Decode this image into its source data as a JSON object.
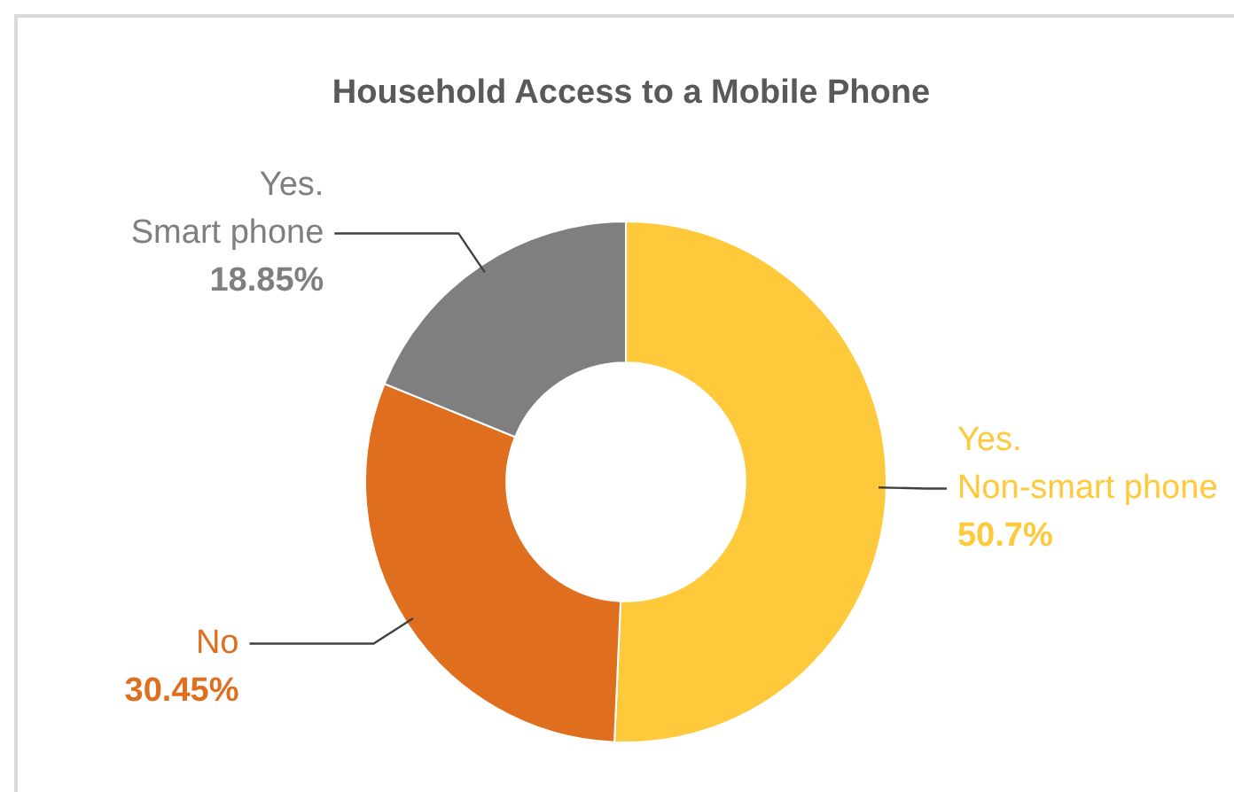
{
  "chart_data": {
    "type": "donut",
    "title": "Household Access to a Mobile Phone",
    "categories": [
      "Yes.\nNon-smart phone",
      "No",
      "Yes.\nSmart phone"
    ],
    "values": [
      50.7,
      30.45,
      18.85
    ],
    "colors": [
      "#fec93a",
      "#df6f1f",
      "#7f7f7f"
    ],
    "value_labels": [
      "50.7%",
      "30.45%",
      "18.85%"
    ],
    "legend": false
  }
}
